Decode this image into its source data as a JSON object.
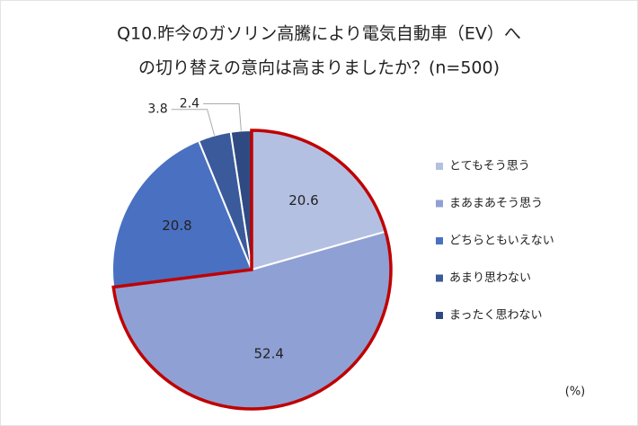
{
  "chart_data": {
    "type": "pie",
    "title": [
      "Q10.昨今のガソリン高騰により電気自動車（EV）へ",
      "の切り替えの意向は高まりましたか？(n=500)"
    ],
    "categories": [
      "とてもそう思う",
      "まあまあそう思う",
      "どちらともいえない",
      "あまり思わない",
      "まったく思わない"
    ],
    "values": [
      20.6,
      52.4,
      20.8,
      3.8,
      2.4
    ],
    "colors": [
      "#b4c0e2",
      "#8fa0d4",
      "#4a70c2",
      "#3b5a9c",
      "#2f4a82"
    ],
    "highlight": [
      0,
      1
    ],
    "highlight_color": "#c00000",
    "legend": "right",
    "unit_label": "(%)"
  }
}
